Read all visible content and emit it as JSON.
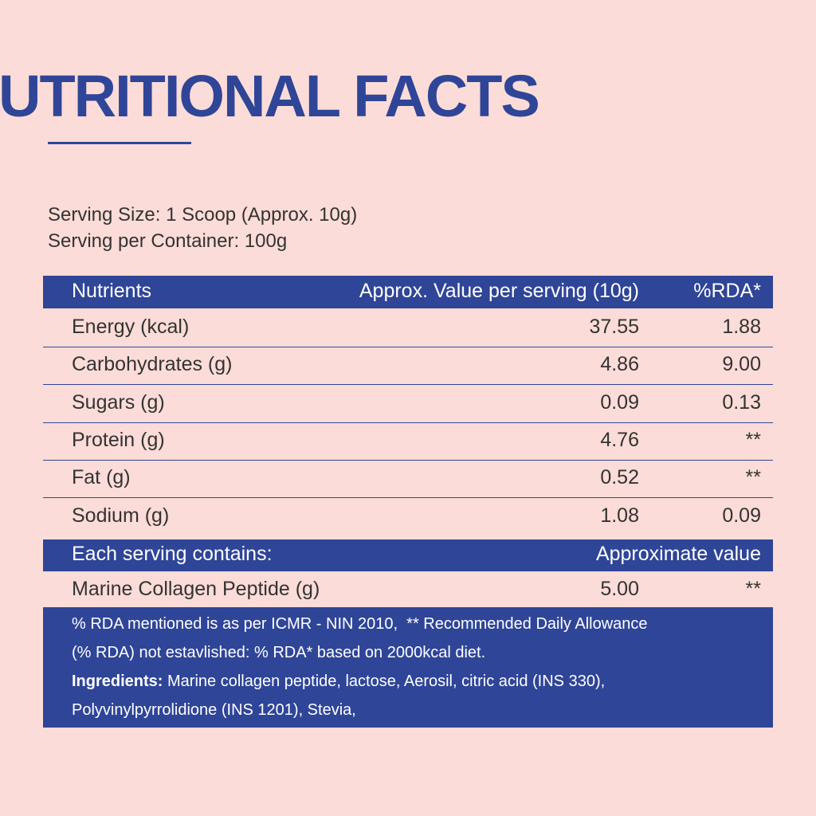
{
  "header": {
    "title": "UTRITIONAL FACTS"
  },
  "serving": [
    "Serving Size: 1 Scoop (Approx. 10g)",
    "Serving per Container: 100g"
  ],
  "table": {
    "columns": [
      "Nutrients",
      "Approx. Value per serving (10g)",
      "%RDA*"
    ],
    "rows": [
      [
        "Energy (kcal)",
        "37.55",
        "1.88"
      ],
      [
        "Carbohydrates (g)",
        "4.86",
        "9.00"
      ],
      [
        "Sugars (g)",
        "0.09",
        "0.13"
      ],
      [
        "Protein (g)",
        "4.76",
        "**"
      ],
      [
        "Fat (g)",
        "0.52",
        "**"
      ],
      [
        "Sodium (g)",
        "1.08",
        "0.09"
      ]
    ]
  },
  "section": {
    "columns": [
      "Each serving contains:",
      "Approximate value"
    ],
    "rows": [
      [
        "Marine Collagen Peptide (g)",
        "5.00",
        "**"
      ]
    ]
  },
  "footer": {
    "notes": [
      "% RDA mentioned is as per ICMR - NIN 2010,  ** Recommended Daily Allowance",
      "(% RDA) not estavlished: % RDA* based on 2000kcal diet."
    ],
    "ingredients": {
      "label": "Ingredients:",
      "lines": [
        "Marine collagen peptide, lactose, Aerosil, citric acid (INS 330),",
        "Polyvinylpyrrolidione (INS 1201), Stevia,"
      ]
    }
  }
}
